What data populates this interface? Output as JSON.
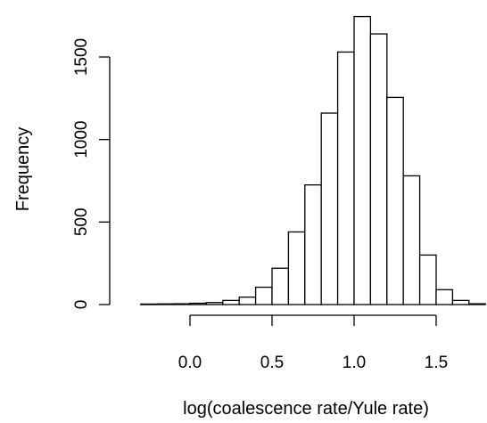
{
  "chart_data": {
    "type": "bar",
    "title": "",
    "xlabel": "log(coalescence rate/Yule rate)",
    "ylabel": "Frequency",
    "bin_width": 0.1,
    "bins": [
      {
        "start": -0.3,
        "end": -0.2,
        "value": 3
      },
      {
        "start": -0.2,
        "end": -0.1,
        "value": 4
      },
      {
        "start": -0.1,
        "end": 0.0,
        "value": 5
      },
      {
        "start": 0.0,
        "end": 0.1,
        "value": 8
      },
      {
        "start": 0.1,
        "end": 0.2,
        "value": 12
      },
      {
        "start": 0.2,
        "end": 0.3,
        "value": 25
      },
      {
        "start": 0.3,
        "end": 0.4,
        "value": 45
      },
      {
        "start": 0.4,
        "end": 0.5,
        "value": 105
      },
      {
        "start": 0.5,
        "end": 0.6,
        "value": 220
      },
      {
        "start": 0.6,
        "end": 0.7,
        "value": 440
      },
      {
        "start": 0.7,
        "end": 0.8,
        "value": 725
      },
      {
        "start": 0.8,
        "end": 0.9,
        "value": 1160
      },
      {
        "start": 0.9,
        "end": 1.0,
        "value": 1530
      },
      {
        "start": 1.0,
        "end": 1.1,
        "value": 1745
      },
      {
        "start": 1.1,
        "end": 1.2,
        "value": 1640
      },
      {
        "start": 1.2,
        "end": 1.3,
        "value": 1255
      },
      {
        "start": 1.3,
        "end": 1.4,
        "value": 780
      },
      {
        "start": 1.4,
        "end": 1.5,
        "value": 300
      },
      {
        "start": 1.5,
        "end": 1.6,
        "value": 90
      },
      {
        "start": 1.6,
        "end": 1.7,
        "value": 25
      },
      {
        "start": 1.7,
        "end": 1.8,
        "value": 5
      }
    ],
    "xlim": [
      -0.3,
      1.8
    ],
    "ylim": [
      0,
      1745
    ],
    "x_ticks": [
      0.0,
      0.5,
      1.0,
      1.5
    ],
    "x_tick_labels": [
      "0.0",
      "0.5",
      "1.0",
      "1.5"
    ],
    "y_ticks": [
      0,
      500,
      1000,
      1500
    ],
    "y_tick_labels": [
      "0",
      "500",
      "1000",
      "1500"
    ],
    "grid": false,
    "legend": "none"
  }
}
